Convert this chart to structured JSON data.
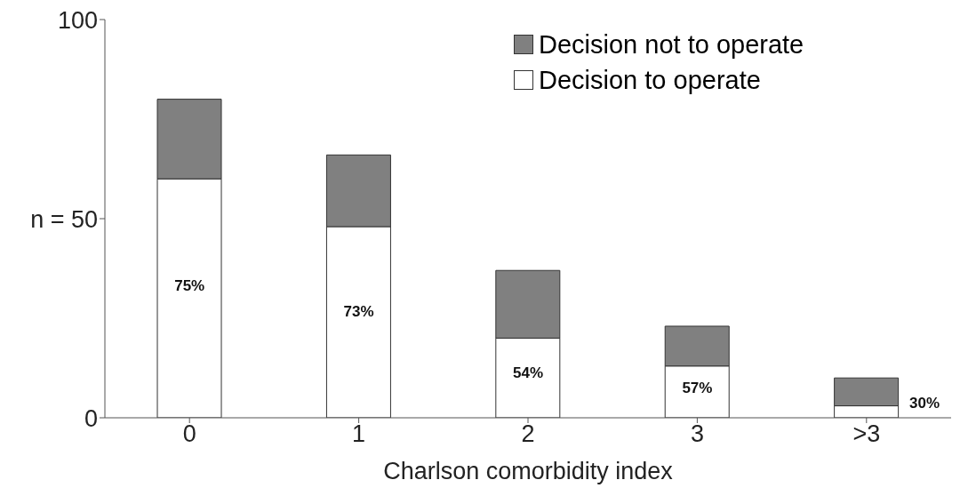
{
  "chart_data": {
    "type": "bar",
    "stacked": true,
    "xlabel": "Charlson comorbidity index",
    "categories": [
      "0",
      "1",
      "2",
      "3",
      ">3"
    ],
    "series": [
      {
        "name": "Decision to operate",
        "color": "#ffffff",
        "values": [
          60,
          48,
          20,
          13,
          3
        ]
      },
      {
        "name": "Decision not to operate",
        "color": "#808080",
        "values": [
          20,
          18,
          17,
          10,
          7
        ]
      }
    ],
    "annotations": [
      "75%",
      "73%",
      "54%",
      "57%",
      "30%"
    ],
    "ylim": [
      0,
      100
    ],
    "yticks": [
      0,
      {
        "value": 50,
        "label": "n = 50"
      },
      100
    ],
    "legend": "top right"
  }
}
